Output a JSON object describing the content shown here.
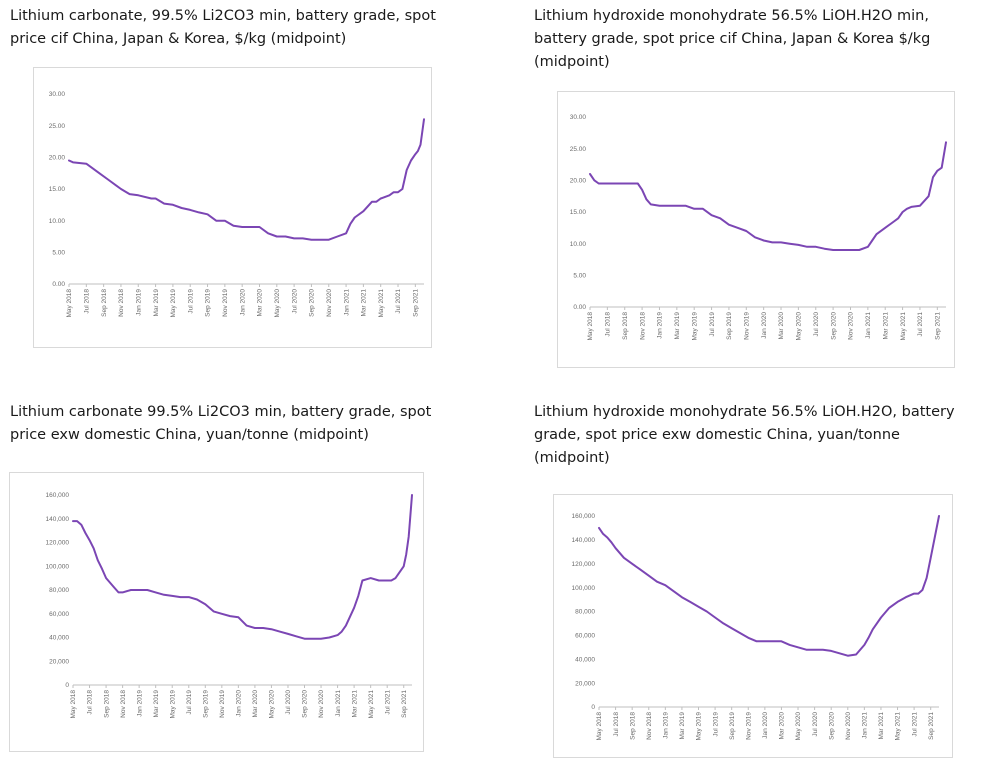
{
  "accent_color": "#7b46b4",
  "chart_data": [
    {
      "type": "line",
      "title": "Lithium carbonate, 99.5% Li2CO3 min, battery grade, spot price cif China, Japan & Korea, $/kg (midpoint)",
      "xlabel": "",
      "ylabel": "",
      "ylim": [
        0,
        30
      ],
      "yticks": [
        "30.00",
        "25.00",
        "20.00",
        "15.00",
        "10.00",
        "5.00",
        "0.00"
      ],
      "ytick_values": [
        30,
        25,
        20,
        15,
        10,
        5,
        0
      ],
      "xticks": [
        "May 2018",
        "Jul 2018",
        "Sep 2018",
        "Nov 2018",
        "Jan 2019",
        "Mar 2019",
        "May 2019",
        "Jul 2019",
        "Sep 2019",
        "Nov 2019",
        "Jan 2020",
        "Mar 2020",
        "May 2020",
        "Jul 2020",
        "Sep 2020",
        "Nov 2020",
        "Jan 2021",
        "Mar 2021",
        "May 2021",
        "Jul 2021",
        "Sep 2021"
      ],
      "x_range": [
        0,
        41
      ],
      "grid": false,
      "legend": "none",
      "series": [
        {
          "x": [
            0,
            0.5,
            2,
            2.5,
            3.5,
            4.5,
            5.5,
            6,
            7,
            8,
            9.5,
            10,
            11,
            12,
            13,
            14,
            15,
            16,
            17,
            18,
            19,
            20,
            21,
            22,
            23,
            24,
            25,
            26,
            27,
            28,
            29,
            30,
            31,
            32,
            32.5,
            33,
            34,
            35,
            35.5,
            36,
            37,
            37.5,
            38,
            38.5,
            39,
            39.5,
            40,
            40.3,
            40.6,
            41
          ],
          "values": [
            19.5,
            19.2,
            19.0,
            18.5,
            17.5,
            16.5,
            15.5,
            15.0,
            14.2,
            14.0,
            13.5,
            13.5,
            12.7,
            12.5,
            12.0,
            11.7,
            11.3,
            11.0,
            10.0,
            10.0,
            9.2,
            9.0,
            9.0,
            9.0,
            8.0,
            7.5,
            7.5,
            7.2,
            7.2,
            7.0,
            7.0,
            7.0,
            7.5,
            8.0,
            9.5,
            10.5,
            11.5,
            13.0,
            13.0,
            13.5,
            14.0,
            14.5,
            14.5,
            15.0,
            18.0,
            19.5,
            20.5,
            21.0,
            22.0,
            26.0
          ]
        }
      ]
    },
    {
      "type": "line",
      "title": "Lithium hydroxide monohydrate 56.5% LiOH.H2O min, battery grade, spot price cif China, Japan & Korea $/kg (midpoint)",
      "xlabel": "",
      "ylabel": "",
      "ylim": [
        0,
        30
      ],
      "yticks": [
        "30.00",
        "25.00",
        "20.00",
        "15.00",
        "10.00",
        "5.00",
        "0.00"
      ],
      "ytick_values": [
        30,
        25,
        20,
        15,
        10,
        5,
        0
      ],
      "xticks": [
        "May 2018",
        "Jul 2018",
        "Sep 2018",
        "Nov 2018",
        "Jan 2019",
        "Mar 2019",
        "May 2019",
        "Jul 2019",
        "Sep 2019",
        "Nov 2019",
        "Jan 2020",
        "Mar 2020",
        "May 2020",
        "Jul 2020",
        "Sep 2020",
        "Nov 2020",
        "Jan 2021",
        "Mar 2021",
        "May 2021",
        "Jul 2021",
        "Sep 2021"
      ],
      "x_range": [
        0,
        41
      ],
      "grid": false,
      "legend": "none",
      "series": [
        {
          "x": [
            0,
            0.5,
            1,
            5.5,
            6,
            6.5,
            7,
            8,
            9,
            11,
            12,
            13,
            14,
            15,
            16,
            17,
            18,
            19,
            20,
            21,
            22,
            23,
            24,
            25,
            26,
            27,
            28,
            29,
            30,
            31,
            32,
            32.5,
            33,
            34,
            35,
            35.5,
            36,
            36.5,
            37,
            38,
            39,
            39.5,
            40,
            40.5,
            41
          ],
          "values": [
            21.0,
            20.0,
            19.5,
            19.5,
            18.5,
            17.0,
            16.2,
            16.0,
            16.0,
            16.0,
            15.5,
            15.5,
            14.5,
            14.0,
            13.0,
            12.5,
            12.0,
            11.0,
            10.5,
            10.2,
            10.2,
            10.0,
            9.8,
            9.5,
            9.5,
            9.2,
            9.0,
            9.0,
            9.0,
            9.0,
            9.5,
            10.5,
            11.5,
            12.5,
            13.5,
            14.0,
            15.0,
            15.5,
            15.8,
            16.0,
            17.5,
            20.5,
            21.5,
            22.0,
            26.0
          ]
        }
      ]
    },
    {
      "type": "line",
      "title": "Lithium carbonate 99.5% Li2CO3 min, battery grade, spot price exw domestic China, yuan/tonne (midpoint)",
      "xlabel": "",
      "ylabel": "",
      "ylim": [
        0,
        160000
      ],
      "yticks": [
        "160,000",
        "140,000",
        "120,000",
        "100,000",
        "80,000",
        "60,000",
        "40,000",
        "20,000",
        "0"
      ],
      "ytick_values": [
        160000,
        140000,
        120000,
        100000,
        80000,
        60000,
        40000,
        20000,
        0
      ],
      "xticks": [
        "May 2018",
        "Jul 2018",
        "Sep 2018",
        "Nov 2018",
        "Jan 2019",
        "Mar 2019",
        "May 2019",
        "Jul 2019",
        "Sep 2019",
        "Nov 2019",
        "Jan 2020",
        "Mar 2020",
        "May 2020",
        "Jul 2020",
        "Sep 2020",
        "Nov 2020",
        "Jan 2021",
        "Mar 2021",
        "May 2021",
        "Jul 2021",
        "Sep 2021"
      ],
      "x_range": [
        0,
        41
      ],
      "grid": false,
      "legend": "none",
      "series": [
        {
          "x": [
            0,
            0.5,
            1,
            1.5,
            2,
            2.5,
            3,
            3.5,
            4,
            5,
            5.5,
            6,
            7,
            8,
            9,
            10,
            11,
            12,
            13,
            14,
            15,
            16,
            17,
            18,
            19,
            20,
            21,
            22,
            23,
            24,
            25,
            26,
            27,
            28,
            29,
            30,
            31,
            32,
            32.5,
            33,
            34,
            34.5,
            35,
            36,
            37,
            38,
            38.5,
            39,
            39.5,
            40,
            40.3,
            40.6,
            41
          ],
          "values": [
            138000,
            138000,
            135000,
            128000,
            122000,
            115000,
            105000,
            98000,
            90000,
            82000,
            78000,
            78000,
            80000,
            80000,
            80000,
            78000,
            76000,
            75000,
            74000,
            74000,
            72000,
            68000,
            62000,
            60000,
            58000,
            57000,
            50000,
            48000,
            48000,
            47000,
            45000,
            43000,
            41000,
            39000,
            39000,
            39000,
            40000,
            42000,
            45000,
            50000,
            65000,
            75000,
            88000,
            90000,
            88000,
            88000,
            88000,
            90000,
            95000,
            100000,
            110000,
            125000,
            160000
          ]
        }
      ]
    },
    {
      "type": "line",
      "title": "Lithium hydroxide monohydrate 56.5% LiOH.H2O, battery grade, spot price exw domestic China, yuan/tonne (midpoint)",
      "xlabel": "",
      "ylabel": "",
      "ylim": [
        0,
        160000
      ],
      "yticks": [
        "160,000",
        "140,000",
        "120,000",
        "100,000",
        "80,000",
        "60,000",
        "40,000",
        "20,000",
        "0"
      ],
      "ytick_values": [
        160000,
        140000,
        120000,
        100000,
        80000,
        60000,
        40000,
        20000,
        0
      ],
      "xticks": [
        "May 2018",
        "Jul 2018",
        "Sep 2018",
        "Nov 2018",
        "Jan 2019",
        "Mar 2019",
        "May 2019",
        "Jul 2019",
        "Sep 2019",
        "Nov 2019",
        "Jan 2020",
        "Mar 2020",
        "May 2020",
        "Jul 2020",
        "Sep 2020",
        "Nov 2020",
        "Jan 2021",
        "Mar 2021",
        "May 2021",
        "Jul 2021",
        "Sep 2021"
      ],
      "x_range": [
        0,
        41
      ],
      "grid": false,
      "legend": "none",
      "series": [
        {
          "x": [
            0,
            0.5,
            1,
            1.5,
            2,
            3,
            4,
            5,
            6,
            7,
            8,
            9,
            10,
            11,
            12,
            13,
            14,
            15,
            16,
            17,
            18,
            19,
            20,
            21,
            22,
            23,
            24,
            25,
            26,
            27,
            28,
            29,
            30,
            31,
            32,
            32.5,
            33,
            34,
            35,
            36,
            37,
            38,
            38.5,
            39,
            39.5,
            40,
            41
          ],
          "values": [
            150000,
            145000,
            142000,
            138000,
            133000,
            125000,
            120000,
            115000,
            110000,
            105000,
            102000,
            97000,
            92000,
            88000,
            84000,
            80000,
            75000,
            70000,
            66000,
            62000,
            58000,
            55000,
            55000,
            55000,
            55000,
            52000,
            50000,
            48000,
            48000,
            48000,
            47000,
            45000,
            43000,
            44000,
            52000,
            58000,
            65000,
            75000,
            83000,
            88000,
            92000,
            95000,
            95000,
            98000,
            108000,
            125000,
            160000
          ]
        }
      ]
    }
  ]
}
